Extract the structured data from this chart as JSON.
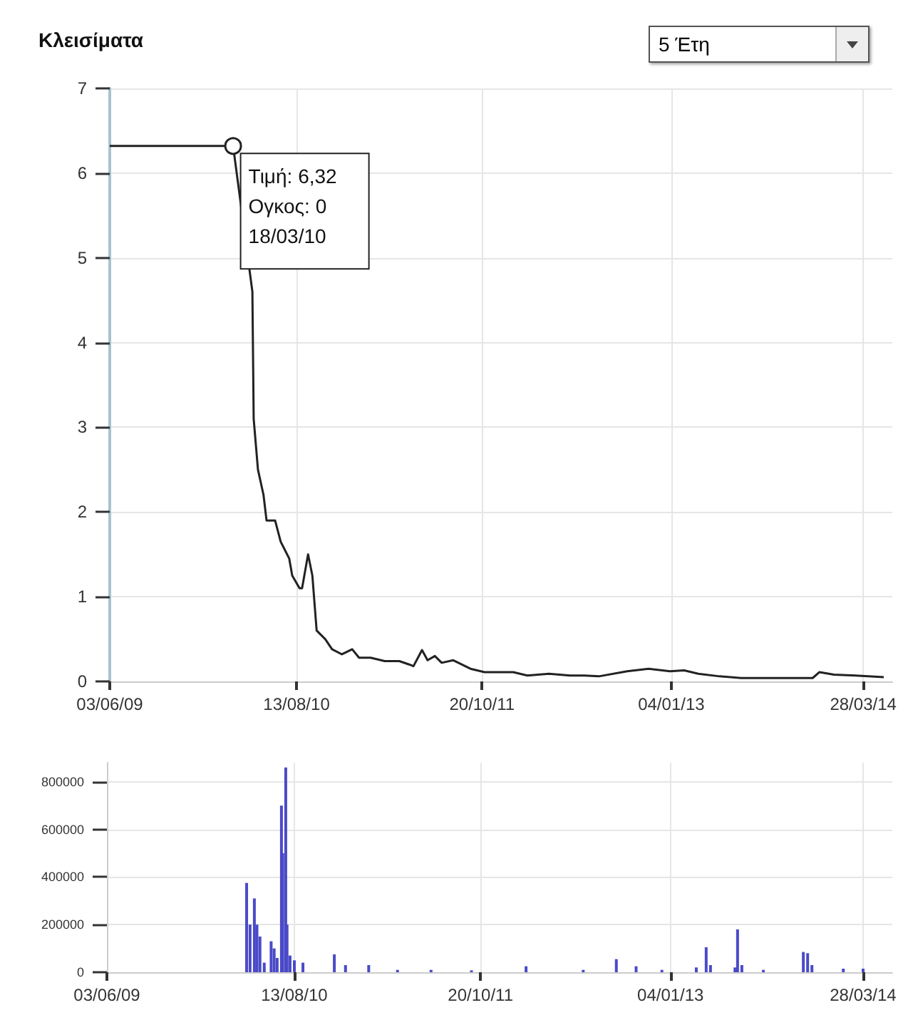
{
  "chart_data": [
    {
      "type": "line",
      "title": "Κλεισίματα",
      "grid": true,
      "annotations": [
        "5 Έτη",
        {
          "text": "Τιμή: 6,32\nΟγκος: 0\n18/03/10",
          "x": "2010-03-18",
          "y": 6.32
        }
      ],
      "xlim": [
        "2009-06-03",
        "2014-06-04"
      ],
      "xticks": [
        {
          "value": "2009-06-03",
          "label": "03/06/09"
        },
        {
          "value": "2010-08-13",
          "label": "13/08/10"
        },
        {
          "value": "2011-10-20",
          "label": "20/10/11"
        },
        {
          "value": "2013-01-04",
          "label": "04/01/13"
        },
        {
          "value": "2014-03-28",
          "label": "28/03/14"
        }
      ],
      "ylim": [
        0,
        7
      ],
      "yticks": [
        0,
        1,
        2,
        3,
        4,
        5,
        6,
        7
      ],
      "series": [
        {
          "color": "#222222",
          "x": [
            "2009-06-03",
            "2010-03-18",
            "2010-05-02",
            "2010-05-05",
            "2010-05-15",
            "2010-05-28",
            "2010-06-04",
            "2010-06-24",
            "2010-07-07",
            "2010-07-27",
            "2010-08-03",
            "2010-08-20",
            "2010-08-26",
            "2010-09-09",
            "2010-09-19",
            "2010-09-29",
            "2010-10-19",
            "2010-11-04",
            "2010-11-27",
            "2010-12-21",
            "2011-01-06",
            "2011-02-02",
            "2011-03-07",
            "2011-04-10",
            "2011-05-03",
            "2011-05-13",
            "2011-06-02",
            "2011-06-15",
            "2011-07-02",
            "2011-07-18",
            "2011-08-14",
            "2011-09-23",
            "2011-10-26",
            "2012-01-01",
            "2012-02-03",
            "2012-03-24",
            "2012-05-13",
            "2012-06-15",
            "2012-07-19",
            "2012-09-23",
            "2012-11-12",
            "2013-01-01",
            "2013-02-03",
            "2013-03-08",
            "2013-04-27",
            "2013-06-16",
            "2013-08-22",
            "2013-11-30",
            "2013-12-16",
            "2014-01-19",
            "2014-03-10",
            "2014-05-15"
          ],
          "values": [
            6.32,
            6.32,
            4.6,
            3.1,
            2.5,
            2.2,
            1.9,
            1.9,
            1.65,
            1.45,
            1.25,
            1.1,
            1.1,
            1.5,
            1.25,
            0.6,
            0.5,
            0.38,
            0.32,
            0.38,
            0.28,
            0.28,
            0.24,
            0.24,
            0.2,
            0.18,
            0.37,
            0.25,
            0.3,
            0.22,
            0.25,
            0.15,
            0.11,
            0.11,
            0.07,
            0.09,
            0.07,
            0.07,
            0.06,
            0.12,
            0.15,
            0.12,
            0.13,
            0.09,
            0.06,
            0.04,
            0.04,
            0.04,
            0.11,
            0.08,
            0.07,
            0.05
          ]
        }
      ]
    },
    {
      "type": "bar",
      "grid": true,
      "xlim": [
        "2009-06-03",
        "2014-06-04"
      ],
      "xticks": [
        {
          "value": "2009-06-03",
          "label": "03/06/09"
        },
        {
          "value": "2010-08-13",
          "label": "13/08/10"
        },
        {
          "value": "2011-10-20",
          "label": "20/10/11"
        },
        {
          "value": "2013-01-04",
          "label": "04/01/13"
        },
        {
          "value": "2014-03-28",
          "label": "28/03/14"
        }
      ],
      "ylim": [
        0,
        880000
      ],
      "yticks": [
        0,
        200000,
        400000,
        600000,
        800000
      ],
      "series": [
        {
          "color": "#4a4ac8",
          "x": [
            "2010-04-24",
            "2010-05-02",
            "2010-05-12",
            "2010-05-18",
            "2010-05-25",
            "2010-06-04",
            "2010-06-20",
            "2010-06-27",
            "2010-07-04",
            "2010-07-14",
            "2010-07-17",
            "2010-07-24",
            "2010-07-27",
            "2010-08-03",
            "2010-08-13",
            "2010-09-02",
            "2010-11-14",
            "2010-12-10",
            "2011-02-02",
            "2011-04-10",
            "2011-06-27",
            "2011-09-29",
            "2012-02-03",
            "2012-06-15",
            "2012-08-31",
            "2012-10-16",
            "2012-12-15",
            "2013-03-05",
            "2013-03-28",
            "2013-04-07",
            "2013-06-03",
            "2013-06-09",
            "2013-06-19",
            "2013-08-08",
            "2013-11-09",
            "2013-11-19",
            "2013-11-29",
            "2014-02-10",
            "2014-03-28"
          ],
          "values": [
            375000,
            200000,
            310000,
            200000,
            150000,
            40000,
            130000,
            100000,
            60000,
            700000,
            500000,
            860000,
            200000,
            70000,
            50000,
            40000,
            75000,
            30000,
            30000,
            10000,
            10000,
            8000,
            25000,
            10000,
            55000,
            25000,
            10000,
            20000,
            105000,
            30000,
            20000,
            180000,
            30000,
            10000,
            85000,
            80000,
            30000,
            15000,
            15000
          ]
        }
      ]
    }
  ]
}
